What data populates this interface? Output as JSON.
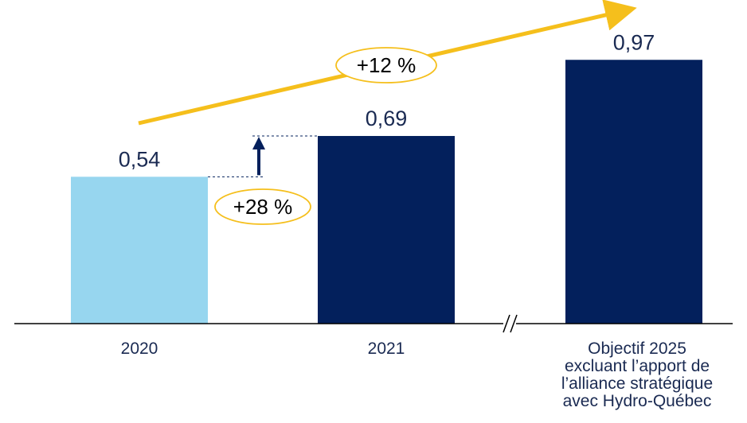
{
  "chart_data": {
    "type": "bar",
    "categories": [
      "2020",
      "2021",
      "Objectif 2025"
    ],
    "category_labels": [
      [
        "2020"
      ],
      [
        "2021"
      ],
      [
        "Objectif 2025",
        "excluant l’apport de",
        "l’alliance stratégique",
        "avec Hydro-Québec"
      ]
    ],
    "values": [
      0.54,
      0.69,
      0.97
    ],
    "value_labels": [
      "0,54",
      "0,69",
      "0,97"
    ],
    "bar_colors": [
      "#97d6ef",
      "#03205c",
      "#03205c"
    ],
    "ylim": [
      0,
      1.1
    ],
    "axis_break_between": [
      1,
      2
    ],
    "annotations": [
      {
        "text": "+28 %",
        "from": "2020",
        "to": "2021",
        "style": "vertical-arrow",
        "color": "#03205c"
      },
      {
        "text": "+12 %",
        "from": "2020",
        "to": "Objectif 2025",
        "style": "trend-arrow",
        "color": "#f5bf1c"
      }
    ],
    "title": "",
    "xlabel": "",
    "ylabel": ""
  }
}
